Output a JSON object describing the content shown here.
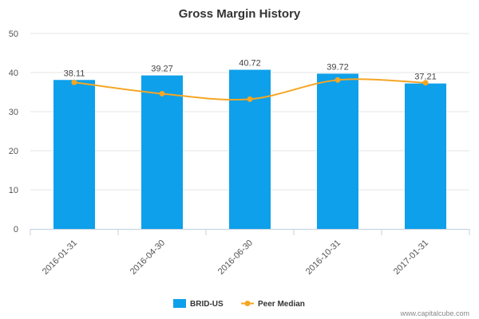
{
  "chart_data": {
    "type": "bar",
    "title": "Gross Margin History",
    "categories": [
      "2016-01-31",
      "2016-04-30",
      "2016-06-30",
      "2016-10-31",
      "2017-01-31"
    ],
    "series": [
      {
        "name": "BRID-US",
        "type": "bar",
        "color": "#0ea0ea",
        "values": [
          38.11,
          39.27,
          40.72,
          39.72,
          37.21
        ],
        "labels": [
          "38.11",
          "39.27",
          "40.72",
          "39.72",
          "37.21"
        ]
      },
      {
        "name": "Peer Median",
        "type": "line",
        "color": "#f5a623",
        "values": [
          37.5,
          34.6,
          33.2,
          38.1,
          37.4
        ]
      }
    ],
    "ylim": [
      0,
      50
    ],
    "yticks": [
      "0",
      "10",
      "20",
      "30",
      "40",
      "50"
    ],
    "xlabel": "",
    "ylabel": "",
    "legend_position": "bottom-center"
  },
  "watermark": "www.capitalcube.com"
}
